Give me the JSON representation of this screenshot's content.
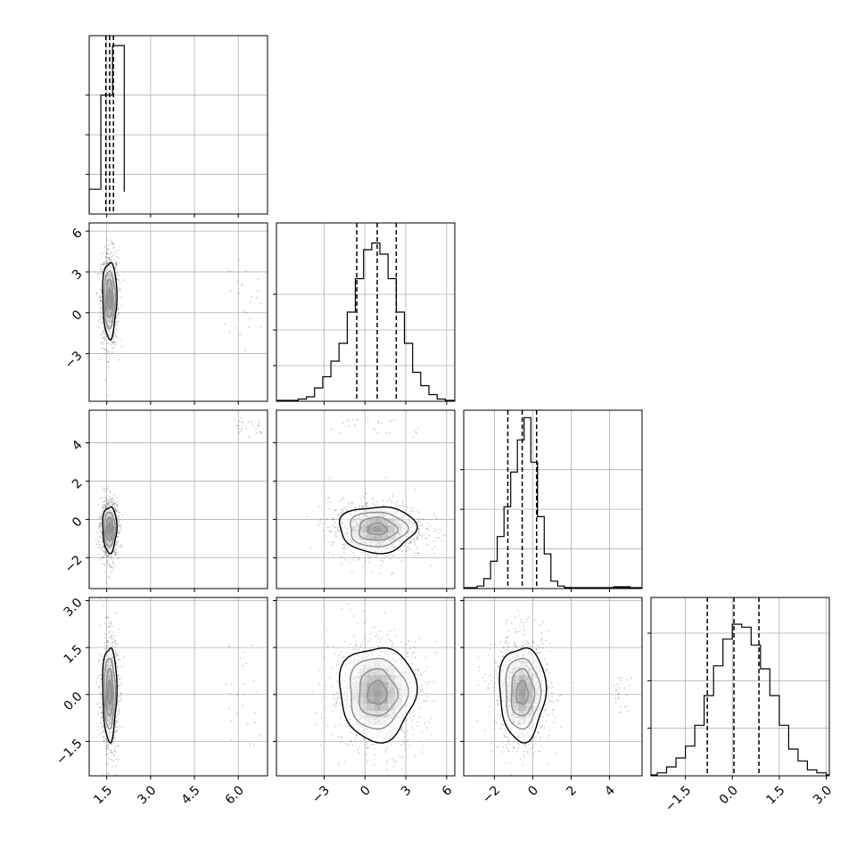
{
  "chart_data": {
    "type": "corner",
    "n_params": 4,
    "grid": true,
    "colors": {
      "ink": "#000000",
      "grid": "#b0b0b0",
      "scatter": "#000000"
    },
    "quantile_lines": "dashed",
    "axes": [
      {
        "range": [
          0.9,
          7.0
        ],
        "ticks": [
          1.5,
          3.0,
          4.5,
          6.0
        ],
        "tick_labels": [
          "1.5",
          "3.0",
          "4.5",
          "6.0"
        ],
        "show_tick_labels": true
      },
      {
        "range": [
          -6.5,
          6.6
        ],
        "ticks": [
          -3,
          0,
          3,
          6
        ],
        "tick_labels": [
          "−3",
          "0",
          "3",
          "6"
        ],
        "show_tick_labels": true
      },
      {
        "range": [
          -3.6,
          5.7
        ],
        "ticks": [
          -2,
          0,
          2,
          4
        ],
        "tick_labels": [
          "−2",
          "0",
          "2",
          "4"
        ],
        "show_tick_labels": true
      },
      {
        "range": [
          -2.6,
          3.1
        ],
        "ticks": [
          -1.5,
          0.0,
          1.5,
          3.0
        ],
        "tick_labels": [
          "−1.5",
          "0.0",
          "1.5",
          "3.0"
        ],
        "show_tick_labels": true
      }
    ],
    "marginals": [
      {
        "bins": [
          0.9,
          1.3,
          1.7,
          2.1
        ],
        "counts": [
          0.5,
          2.4,
          3.4,
          0.45
        ],
        "quantiles": [
          1.47,
          1.6,
          1.73
        ],
        "ymax": 3.6
      },
      {
        "bins": [
          -4.9,
          -4.3,
          -3.7,
          -3.1,
          -2.5,
          -1.9,
          -1.3,
          -0.7,
          -0.1,
          0.5,
          1.1,
          1.7,
          2.3,
          2.9,
          3.5,
          4.1,
          4.7,
          5.3,
          5.9
        ],
        "counts": [
          0.05,
          0.1,
          0.3,
          0.55,
          0.9,
          1.3,
          2.0,
          2.75,
          3.4,
          3.55,
          3.3,
          2.75,
          2.0,
          1.3,
          0.65,
          0.35,
          0.15,
          0.05
        ],
        "quantiles": [
          -0.6,
          0.9,
          2.3
        ],
        "ymax": 4.0
      },
      {
        "bins": [
          -2.9,
          -2.55,
          -2.2,
          -1.85,
          -1.5,
          -1.15,
          -0.8,
          -0.45,
          -0.1,
          0.25,
          0.6,
          0.95,
          1.3,
          1.65,
          2.0
        ],
        "counts": [
          0.05,
          0.2,
          0.55,
          1.05,
          1.65,
          2.35,
          3.0,
          3.45,
          2.55,
          1.45,
          0.7,
          0.15,
          0.05,
          0.02
        ],
        "quantiles": [
          -1.3,
          -0.55,
          0.2
        ],
        "ymax": 3.6,
        "tail": {
          "x": [
            4.2,
            5.1
          ],
          "count": 0.02
        }
      },
      {
        "bins": [
          -2.4,
          -2.1,
          -1.8,
          -1.5,
          -1.2,
          -0.9,
          -0.6,
          -0.3,
          0.0,
          0.3,
          0.6,
          0.9,
          1.2,
          1.5,
          1.8,
          2.1,
          2.4,
          2.7,
          3.0
        ],
        "counts": [
          0.05,
          0.15,
          0.3,
          0.5,
          0.85,
          1.35,
          1.85,
          2.3,
          2.55,
          2.5,
          2.2,
          1.8,
          1.35,
          0.85,
          0.45,
          0.25,
          0.1,
          0.05
        ],
        "quantiles": [
          -0.8,
          0.05,
          0.85
        ],
        "ymax": 3.0
      }
    ],
    "joints": [
      {
        "row": 1,
        "col": 0,
        "center": [
          1.6,
          1.0
        ],
        "sigma": [
          0.12,
          1.4
        ],
        "outliers": {
          "x": [
            5.5,
            6.8
          ],
          "y": [
            -3,
            4
          ]
        }
      },
      {
        "row": 2,
        "col": 0,
        "center": [
          1.6,
          -0.5
        ],
        "sigma": [
          0.12,
          0.6
        ],
        "outliers": {
          "x": [
            5.8,
            6.8
          ],
          "y": [
            4.3,
            5.3
          ]
        }
      },
      {
        "row": 2,
        "col": 1,
        "center": [
          0.9,
          -0.5
        ],
        "sigma": [
          1.4,
          0.6
        ],
        "outliers": {
          "x": [
            -2.5,
            4
          ],
          "y": [
            4.3,
            5.3
          ]
        }
      },
      {
        "row": 3,
        "col": 0,
        "center": [
          1.6,
          0.05
        ],
        "sigma": [
          0.12,
          0.75
        ],
        "outliers": {
          "x": [
            5.5,
            6.8
          ],
          "y": [
            -1.8,
            2.2
          ]
        }
      },
      {
        "row": 3,
        "col": 1,
        "center": [
          0.9,
          0.05
        ],
        "sigma": [
          1.4,
          0.75
        ],
        "outliers": null
      },
      {
        "row": 3,
        "col": 2,
        "center": [
          -0.55,
          0.05
        ],
        "sigma": [
          0.6,
          0.75
        ],
        "outliers": {
          "x": [
            4.2,
            5.2
          ],
          "y": [
            -0.6,
            0.6
          ]
        }
      }
    ]
  }
}
